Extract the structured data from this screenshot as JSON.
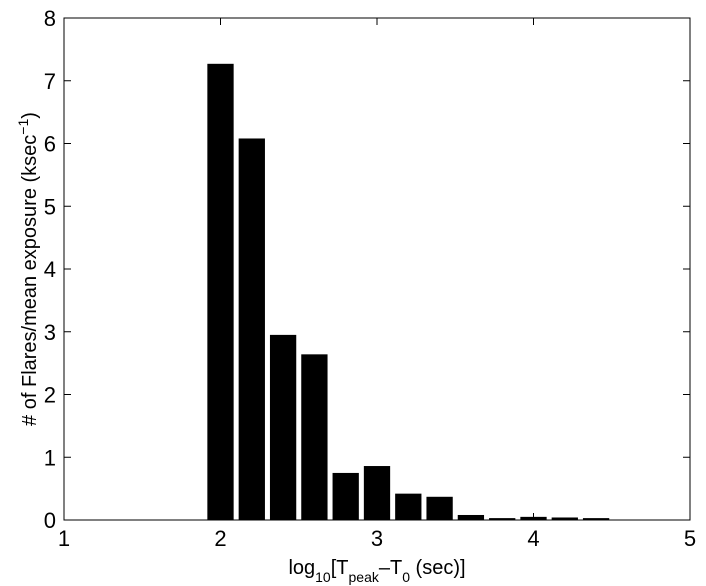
{
  "chart_data": {
    "type": "histogram",
    "xlabel": [
      "log",
      "10",
      "[T",
      "peak",
      "–T",
      "0",
      " (sec)]"
    ],
    "ylabel": [
      "# of Flares/mean exposure (ksec",
      "−1",
      ")"
    ],
    "bins": [
      1.9,
      2.1,
      2.3,
      2.5,
      2.7,
      2.9,
      3.1,
      3.3,
      3.5,
      3.7,
      3.9,
      4.1,
      4.3,
      4.5
    ],
    "values": [
      7.27,
      6.08,
      2.95,
      2.64,
      0.75,
      0.86,
      0.42,
      0.37,
      0.08,
      0.03,
      0.05,
      0.04,
      0.03
    ],
    "color": "#000000",
    "xlim": [
      1,
      5
    ],
    "xticks": [
      1,
      2,
      3,
      4,
      5
    ],
    "ylim": [
      0,
      8
    ],
    "yticks": [
      0,
      1,
      2,
      3,
      4,
      5,
      6,
      7,
      8
    ],
    "grid": false
  }
}
